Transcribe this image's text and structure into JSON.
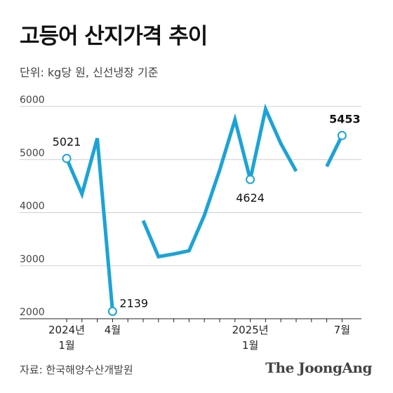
{
  "header": {
    "title": "고등어 산지가격 추이",
    "subtitle": "단위: kg당 원, 신선냉장 기준"
  },
  "footer": {
    "source": "자료: 한국해양수산개발원",
    "brand": "The JoongAng"
  },
  "colors": {
    "line": "#1ca3d6",
    "marker_fill": "#ffffff"
  },
  "chart_data": {
    "type": "line",
    "title": "고등어 산지가격 추이",
    "ylabel": "단위: kg당 원",
    "ylim": [
      2000,
      6000
    ],
    "yticks": [
      "2000",
      "3000",
      "4000",
      "5000",
      "6000"
    ],
    "grid": true,
    "x": [
      "2024-01",
      "2024-02",
      "2024-03",
      "2024-04",
      "2024-05",
      "2024-06",
      "2024-07",
      "2024-08",
      "2024-09",
      "2024-10",
      "2024-11",
      "2024-12",
      "2025-01",
      "2025-02",
      "2025-03",
      "2025-04",
      "2025-05",
      "2025-06",
      "2025-07"
    ],
    "values": [
      5021,
      4350,
      5400,
      2139,
      null,
      3850,
      3170,
      3220,
      3280,
      3950,
      4800,
      5750,
      4624,
      5950,
      5300,
      4780,
      null,
      4870,
      5453
    ],
    "x_tick_labels": [
      {
        "x": "2024-01",
        "lines": [
          "2024년",
          "1월"
        ]
      },
      {
        "x": "2024-04",
        "lines": [
          "4월"
        ]
      },
      {
        "x": "2025-01",
        "lines": [
          "2025년",
          "1월"
        ]
      },
      {
        "x": "2025-07",
        "lines": [
          "7월"
        ]
      }
    ],
    "annotations": [
      {
        "x": "2024-01",
        "value": 5021,
        "label": "5021",
        "bold": false
      },
      {
        "x": "2024-04",
        "value": 2139,
        "label": "2139",
        "bold": false
      },
      {
        "x": "2025-01",
        "value": 4624,
        "label": "4624",
        "bold": false
      },
      {
        "x": "2025-07",
        "value": 5453,
        "label": "5453",
        "bold": true
      }
    ]
  }
}
